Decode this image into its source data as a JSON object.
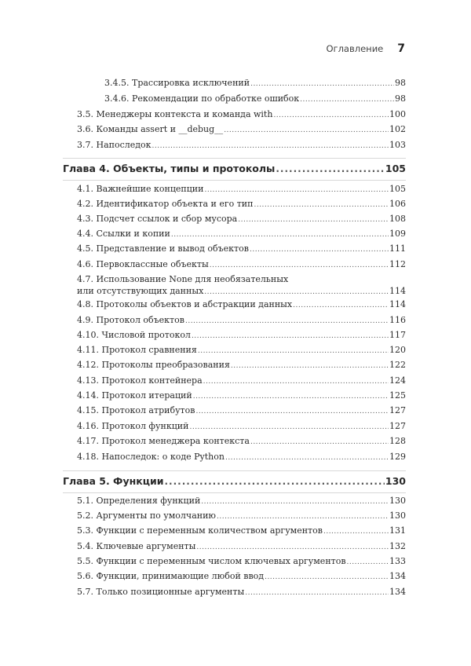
{
  "header": {
    "title": "Оглавление",
    "page": "7"
  },
  "entries_top": [
    {
      "level": 2,
      "title": "3.4.5. Трассировка исключений",
      "page": "98"
    },
    {
      "level": 2,
      "title": "3.4.6. Рекомендации по обработке ошибок",
      "page": "98"
    },
    {
      "level": 1,
      "title": "3.5. Менеджеры контекста и команда with",
      "page": "100"
    },
    {
      "level": 1,
      "title": "3.6. Команды assert и __debug__",
      "page": "102"
    },
    {
      "level": 1,
      "title": "3.7. Напоследок",
      "page": "103"
    }
  ],
  "chapter4": {
    "title": "Глава 4. Объекты, типы и протоколы",
    "page": "105",
    "entries": [
      {
        "title": "4.1. Важнейшие концепции",
        "page": "105"
      },
      {
        "title": "4.2. Идентификатор объекта и его тип",
        "page": "106"
      },
      {
        "title": "4.3. Подсчет ссылок и сбор мусора",
        "page": "108"
      },
      {
        "title": "4.4. Ссылки и копии",
        "page": "109"
      },
      {
        "title": "4.5. Представление и вывод объектов",
        "page": "111"
      },
      {
        "title": "4.6. Первоклассные объекты",
        "page": "112"
      },
      {
        "title": "4.7. Использование None для необязательных",
        "title2": "или отсутствующих данных",
        "page": "114"
      },
      {
        "title": "4.8. Протоколы объектов и абстракции данных",
        "page": "114"
      },
      {
        "title": "4.9. Протокол объектов",
        "page": "116"
      },
      {
        "title": "4.10. Числовой протокол",
        "page": "117"
      },
      {
        "title": "4.11. Протокол сравнения",
        "page": "120"
      },
      {
        "title": "4.12. Протоколы преобразования",
        "page": "122"
      },
      {
        "title": "4.13. Протокол контейнера",
        "page": "124"
      },
      {
        "title": "4.14. Протокол итераций",
        "page": "125"
      },
      {
        "title": "4.15. Протокол атрибутов",
        "page": "127"
      },
      {
        "title": "4.16. Протокол функций",
        "page": "127"
      },
      {
        "title": "4.17. Протокол менеджера контекста",
        "page": "128"
      },
      {
        "title": "4.18. Напоследок: о коде Python",
        "page": "129"
      }
    ]
  },
  "chapter5": {
    "title": "Глава 5. Функции",
    "page": "130",
    "entries": [
      {
        "title": "5.1. Определения функций",
        "page": "130"
      },
      {
        "title": "5.2. Аргументы по умолчанию",
        "page": "130"
      },
      {
        "title": "5.3. Функции с переменным количеством аргументов",
        "page": "131"
      },
      {
        "title": "5.4. Ключевые аргументы",
        "page": "132"
      },
      {
        "title": "5.5. Функции с переменным числом ключевых аргументов",
        "page": "133"
      },
      {
        "title": "5.6. Функции, принимающие любой ввод",
        "page": "134"
      },
      {
        "title": "5.7. Только позиционные аргументы",
        "page": "134"
      }
    ]
  }
}
